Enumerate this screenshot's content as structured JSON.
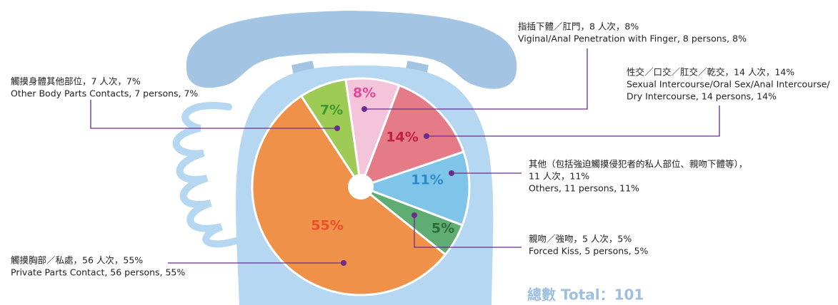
{
  "chart_data": {
    "type": "pie",
    "start_angle": -8,
    "values": [
      8,
      14,
      11,
      5,
      55,
      7
    ],
    "value_labels": [
      "8%",
      "14%",
      "11%",
      "5%",
      "55%",
      "7%"
    ],
    "colors": [
      "#f4c4db",
      "#e47b86",
      "#7fc5ea",
      "#5fad73",
      "#f0914a",
      "#9dcb55"
    ],
    "label_colors": [
      "#e6479a",
      "#c02039",
      "#2a8bc9",
      "#2d6c39",
      "#e8512b",
      "#3c9a2b"
    ],
    "callouts": [
      [
        "指插下體／肛門，8 人次，8%",
        "Viginal/Anal Penetration with Finger, 8 persons, 8%"
      ],
      [
        "性交／口交／肛交／乾交，14 人次，14%",
        "Sexual Intercourse/Oral Sex/Anal Intercourse/",
        "Dry Intercourse, 14 persons, 14%"
      ],
      [
        "其他（包括強迫觸摸侵犯者的私人部位、親吻下體等），",
        "11 人次，11%",
        "Others, 11 persons, 11%"
      ],
      [
        "親吻／強吻，5 人次，5%",
        "Forced Kiss, 5 persons, 5%"
      ],
      [
        "觸摸胸部／私處，56 人次，55%",
        "Private Parts Contact, 56 persons, 55%"
      ],
      [
        "觸摸身體其他部位，7 人次，7%",
        "Other Body Parts Contacts, 7 persons, 7%"
      ]
    ],
    "total_label": "總數 Total：101"
  }
}
